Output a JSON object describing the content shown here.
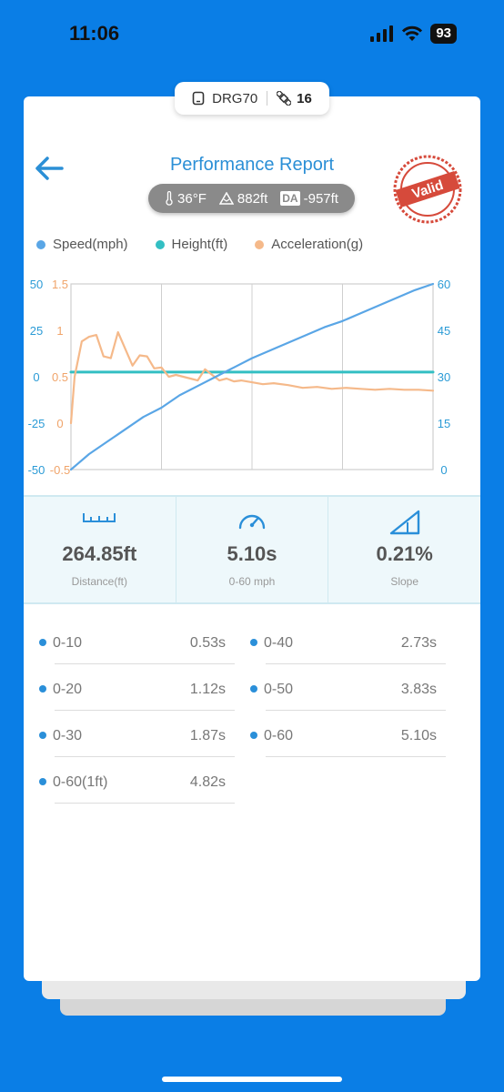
{
  "status_bar": {
    "time": "11:06",
    "battery": "93"
  },
  "device": {
    "name": "DRG70",
    "satellites": "16"
  },
  "header": {
    "title": "Performance Report",
    "stamp_text": "Valid"
  },
  "conditions": {
    "temperature": "36°F",
    "altitude": "882ft",
    "da_label": "DA",
    "density_altitude": "-957ft"
  },
  "legend": [
    {
      "label": "Speed(mph)",
      "color": "#5aa6e6"
    },
    {
      "label": "Height(ft)",
      "color": "#33bfc3"
    },
    {
      "label": "Acceleration(g)",
      "color": "#f5b98a"
    }
  ],
  "chart_data": {
    "type": "line",
    "axes": {
      "height_ticks": [
        "50",
        "25",
        "0",
        "-25",
        "-50"
      ],
      "accel_ticks": [
        "1.5",
        "1",
        "0.5",
        "0",
        "-0.5"
      ],
      "speed_ticks": [
        "60",
        "45",
        "30",
        "15",
        "0"
      ],
      "height_range": [
        -50,
        50
      ],
      "accel_range": [
        -0.5,
        1.5
      ],
      "speed_range": [
        0,
        60
      ]
    },
    "grid": true,
    "series": [
      {
        "name": "Speed(mph)",
        "color": "#5aa6e6",
        "axis": "speed",
        "x": [
          0,
          0.02,
          0.05,
          0.1,
          0.15,
          0.2,
          0.25,
          0.3,
          0.35,
          0.4,
          0.45,
          0.5,
          0.55,
          0.6,
          0.65,
          0.7,
          0.75,
          0.8,
          0.85,
          0.9,
          0.95,
          1.0
        ],
        "y": [
          0,
          2,
          5,
          9,
          13,
          17,
          20,
          24,
          27,
          30,
          33,
          36,
          38.5,
          41,
          43.5,
          46,
          48,
          50.5,
          53,
          55.5,
          58,
          60
        ]
      },
      {
        "name": "Height(ft)",
        "color": "#33bfc3",
        "axis": "height",
        "x": [
          0,
          1
        ],
        "y": [
          2.5,
          2.5
        ]
      },
      {
        "name": "Acceleration(g)",
        "color": "#f5b98a",
        "axis": "accel",
        "x": [
          0,
          0.01,
          0.03,
          0.05,
          0.07,
          0.09,
          0.11,
          0.13,
          0.15,
          0.17,
          0.19,
          0.21,
          0.23,
          0.25,
          0.27,
          0.29,
          0.31,
          0.33,
          0.35,
          0.37,
          0.39,
          0.41,
          0.43,
          0.45,
          0.47,
          0.5,
          0.53,
          0.56,
          0.6,
          0.64,
          0.68,
          0.72,
          0.76,
          0.8,
          0.84,
          0.88,
          0.92,
          0.96,
          1.0
        ],
        "y": [
          0,
          0.5,
          0.88,
          0.93,
          0.95,
          0.72,
          0.7,
          0.98,
          0.8,
          0.62,
          0.73,
          0.72,
          0.59,
          0.6,
          0.5,
          0.52,
          0.5,
          0.48,
          0.46,
          0.58,
          0.52,
          0.46,
          0.48,
          0.45,
          0.46,
          0.44,
          0.42,
          0.43,
          0.41,
          0.38,
          0.39,
          0.37,
          0.38,
          0.37,
          0.36,
          0.37,
          0.36,
          0.36,
          0.35
        ]
      }
    ]
  },
  "stats": [
    {
      "icon": "ruler-icon",
      "value": "264.85ft",
      "label": "Distance(ft)"
    },
    {
      "icon": "speedometer-icon",
      "value": "5.10s",
      "label": "0-60 mph"
    },
    {
      "icon": "slope-icon",
      "value": "0.21%",
      "label": "Slope"
    }
  ],
  "splits": [
    {
      "label": "0-10",
      "value": "0.53s"
    },
    {
      "label": "0-40",
      "value": "2.73s"
    },
    {
      "label": "0-20",
      "value": "1.12s"
    },
    {
      "label": "0-50",
      "value": "3.83s"
    },
    {
      "label": "0-30",
      "value": "1.87s"
    },
    {
      "label": "0-60",
      "value": "5.10s"
    },
    {
      "label": "0-60(1ft)",
      "value": "4.82s"
    }
  ]
}
